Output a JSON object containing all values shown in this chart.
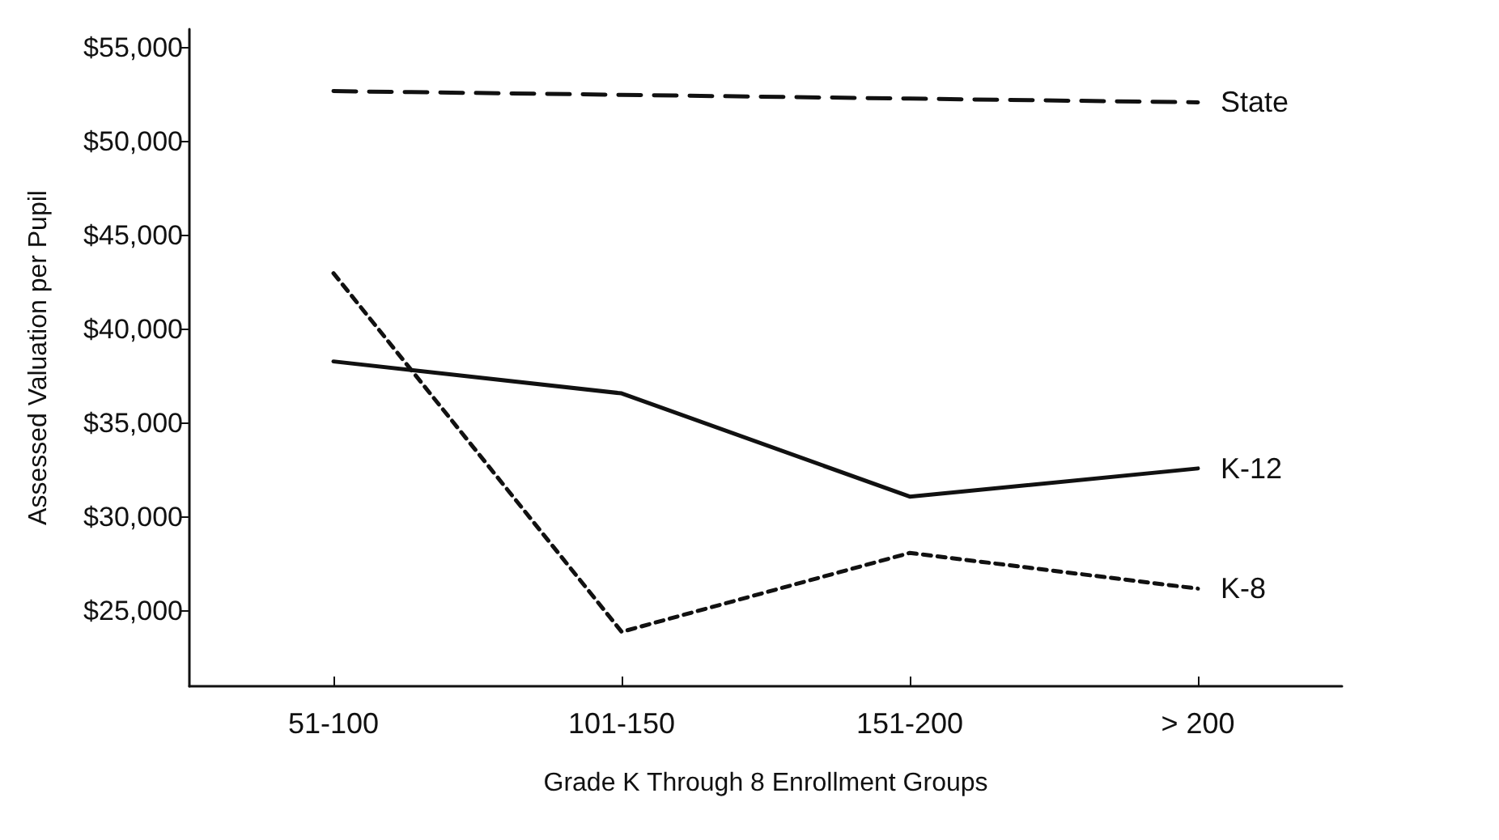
{
  "chart_data": {
    "type": "line",
    "xlabel": "Grade K Through 8 Enrollment Groups",
    "ylabel": "Assessed Valuation per Pupil",
    "categories": [
      "51-100",
      "101-150",
      "151-200",
      "> 200"
    ],
    "series": [
      {
        "name": "State",
        "color": "#111111",
        "line_style": "dashed",
        "values": [
          52700,
          52500,
          52300,
          52100
        ]
      },
      {
        "name": "K-12",
        "color": "#111111",
        "line_style": "solid",
        "values": [
          38300,
          36600,
          31100,
          32600
        ]
      },
      {
        "name": "K-8",
        "color": "#111111",
        "line_style": "dotted",
        "values": [
          43000,
          23900,
          28100,
          26200
        ]
      }
    ],
    "ylim": [
      21000,
      56000
    ],
    "yticks": [
      {
        "value": 25000,
        "label": "$25,000"
      },
      {
        "value": 30000,
        "label": "$30,000"
      },
      {
        "value": 35000,
        "label": "$35,000"
      },
      {
        "value": 40000,
        "label": "$40,000"
      },
      {
        "value": 45000,
        "label": "$45,000"
      },
      {
        "value": 50000,
        "label": "$50,000"
      },
      {
        "value": 55000,
        "label": "$55,000"
      }
    ],
    "grid": false,
    "legend": false,
    "marker": "none"
  }
}
